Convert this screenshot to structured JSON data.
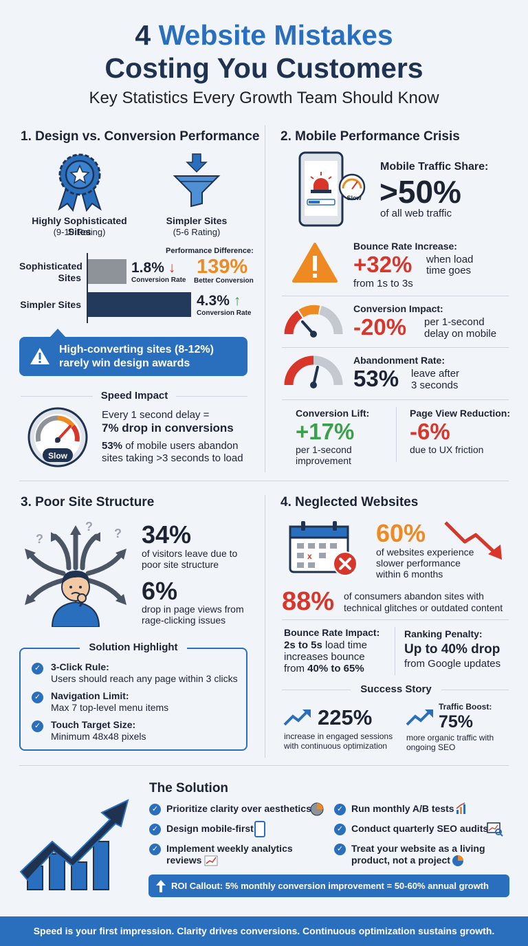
{
  "header": {
    "title_num": "4",
    "title_rest": "Website Mistakes",
    "title_line2": "Costing You Customers",
    "subtitle": "Key Statistics Every Growth Team Should Know"
  },
  "colors": {
    "navy": "#1f3350",
    "blue": "#2a6fbd",
    "orange": "#ee8a21",
    "red": "#d8362a",
    "green": "#3aa14a"
  },
  "s1": {
    "title": "1. Design vs. Conversion Performance",
    "sophisticated_label": "Highly Sophisticated Sites",
    "sophisticated_rating": "(9-10 Rating)",
    "simpler_label": "Simpler Sites",
    "simpler_rating": "(5-6 Rating)",
    "perf_diff_label": "Performance Difference:",
    "bar1_label": "Sophisticated Sites",
    "bar1_value": "1.8%",
    "bar1_sub": "Conversion Rate",
    "diff_value": "139%",
    "diff_sub": "Better Conversion",
    "bar2_label": "Simpler Sites",
    "bar2_value": "4.3%",
    "bar2_sub": "Conversion Rate",
    "callout": "High-converting sites (8-12%) rarely win design awards",
    "speed_title": "Speed Impact",
    "gauge_label": "Slow",
    "speed_line1": "Every 1 second delay =",
    "speed_line2": "7% drop in conversions",
    "speed_line3_strong": "53%",
    "speed_line3": "of mobile users abandon",
    "speed_line4": "sites taking >3 seconds to load"
  },
  "s2": {
    "title": "2. Mobile Performance Crisis",
    "phone_badge": "Slow",
    "traffic_label": "Mobile Traffic Share:",
    "traffic_value": ">50%",
    "traffic_sub": "of all web traffic",
    "bounce_label": "Bounce Rate Increase:",
    "bounce_value": "+32%",
    "bounce_sub1": "when load",
    "bounce_sub2": "time goes",
    "bounce_sub3": "from 1s to 3s",
    "conv_label": "Conversion Impact:",
    "conv_value": "-20%",
    "conv_sub1": "per 1-second",
    "conv_sub2": "delay on mobile",
    "aband_label": "Abandonment Rate:",
    "aband_value": "53%",
    "aband_sub1": "leave after",
    "aband_sub2": "3 seconds",
    "lift_label": "Conversion Lift:",
    "lift_value": "+17%",
    "lift_sub1": "per 1-second",
    "lift_sub2": "improvement",
    "pv_label": "Page View Reduction:",
    "pv_value": "-6%",
    "pv_sub": "due to UX friction"
  },
  "s3": {
    "title": "3. Poor Site Structure",
    "stat1_value": "34%",
    "stat1_sub1": "of visitors leave due to",
    "stat1_sub2": "poor site structure",
    "stat2_value": "6%",
    "stat2_sub1": "drop in page views from",
    "stat2_sub2": "rage-clicking issues",
    "solution_title": "Solution Highlight",
    "items": [
      {
        "title": "3-Click Rule:",
        "text": "Users should reach any page within 3 clicks"
      },
      {
        "title": "Navigation Limit:",
        "text": "Max 7 top-level menu items"
      },
      {
        "title": "Touch Target Size:",
        "text": "Minimum 48x48 pixels"
      }
    ]
  },
  "s4": {
    "title": "4. Neglected Websites",
    "stat1_value": "60%",
    "stat1_sub1": "of websites experience",
    "stat1_sub2": "slower performance",
    "stat1_sub3": "within 6 months",
    "stat2_value": "88%",
    "stat2_sub1": "of consumers abandon sites with",
    "stat2_sub2": "technical glitches or outdated content",
    "bounce_label": "Bounce Rate Impact:",
    "bounce_l1": "2s to 5s",
    "bounce_l1b": "load time",
    "bounce_l2": "increases bounce",
    "bounce_l3a": "from",
    "bounce_l3b": "40% to 65%",
    "rank_label": "Ranking Penalty:",
    "rank_value": "Up to 40% drop",
    "rank_sub": "from Google updates",
    "success_title": "Success Story",
    "ss1_value": "225%",
    "ss1_sub1": "increase in engaged sessions",
    "ss1_sub2": "with continuous optimization",
    "ss2_label": "Traffic Boost:",
    "ss2_value": "75%",
    "ss2_sub1": "more organic traffic with",
    "ss2_sub2": "ongoing SEO"
  },
  "solution": {
    "title": "The Solution",
    "left": [
      "Prioritize clarity over aesthetics",
      "Design mobile-first",
      "Implement weekly analytics reviews"
    ],
    "right": [
      "Run monthly A/B tests",
      "Conduct quarterly SEO audits",
      "Treat your website as a living product, not a project"
    ],
    "roi": "ROI Callout: 5% monthly conversion improvement = 50-60% annual growth"
  },
  "footer": "Speed is your first impression. Clarity drives conversions. Continuous optimization sustains growth."
}
